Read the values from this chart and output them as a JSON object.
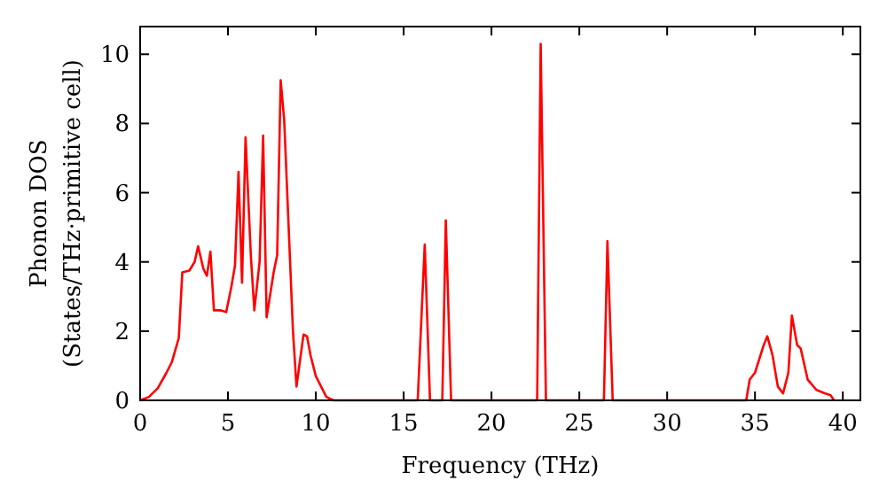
{
  "chart_data": {
    "type": "line",
    "xlabel": "Frequency (THz)",
    "ylabel": "Phonon DOS\n(States/THz·primitive cell)",
    "xlim": [
      0,
      41
    ],
    "ylim": [
      0,
      10.8
    ],
    "xticks": [
      0,
      5,
      10,
      15,
      20,
      25,
      30,
      35,
      40
    ],
    "yticks": [
      0,
      2,
      4,
      6,
      8,
      10
    ],
    "grid": false,
    "marker": "none",
    "line_style": "solid",
    "series": [
      {
        "color": "#ff0000",
        "x": [
          0,
          0.5,
          1,
          1.5,
          1.8,
          2.2,
          2.4,
          2.8,
          3.1,
          3.3,
          3.6,
          3.8,
          4.0,
          4.2,
          4.6,
          4.9,
          5.2,
          5.4,
          5.6,
          5.8,
          6.0,
          6.3,
          6.5,
          6.8,
          7.0,
          7.2,
          7.6,
          7.8,
          8.0,
          8.2,
          8.7,
          8.9,
          9.3,
          9.5,
          9.7,
          10.0,
          10.3,
          10.6,
          11,
          15.8,
          16.2,
          16.5,
          17.2,
          17.4,
          17.7,
          22.6,
          22.8,
          23.1,
          26.4,
          26.6,
          26.9,
          34.5,
          34.7,
          35.0,
          35.5,
          35.7,
          36.0,
          36.3,
          36.6,
          36.9,
          37.1,
          37.4,
          37.6,
          38.0,
          38.5,
          39.0,
          39.3,
          39.5
        ],
        "values": [
          0,
          0.1,
          0.35,
          0.8,
          1.1,
          1.8,
          3.7,
          3.75,
          4.0,
          4.45,
          3.8,
          3.6,
          4.3,
          2.6,
          2.6,
          2.55,
          3.3,
          3.9,
          6.6,
          3.4,
          7.6,
          4.2,
          2.6,
          4.0,
          7.65,
          2.4,
          3.7,
          4.2,
          9.25,
          8.1,
          2.0,
          0.4,
          1.9,
          1.85,
          1.3,
          0.7,
          0.4,
          0.1,
          0,
          0,
          4.5,
          0,
          0,
          5.2,
          0,
          0,
          10.3,
          0,
          0,
          4.6,
          0,
          0,
          0.6,
          0.8,
          1.6,
          1.85,
          1.3,
          0.4,
          0.2,
          0.8,
          2.45,
          1.6,
          1.5,
          0.6,
          0.3,
          0.2,
          0.15,
          0
        ]
      }
    ]
  }
}
